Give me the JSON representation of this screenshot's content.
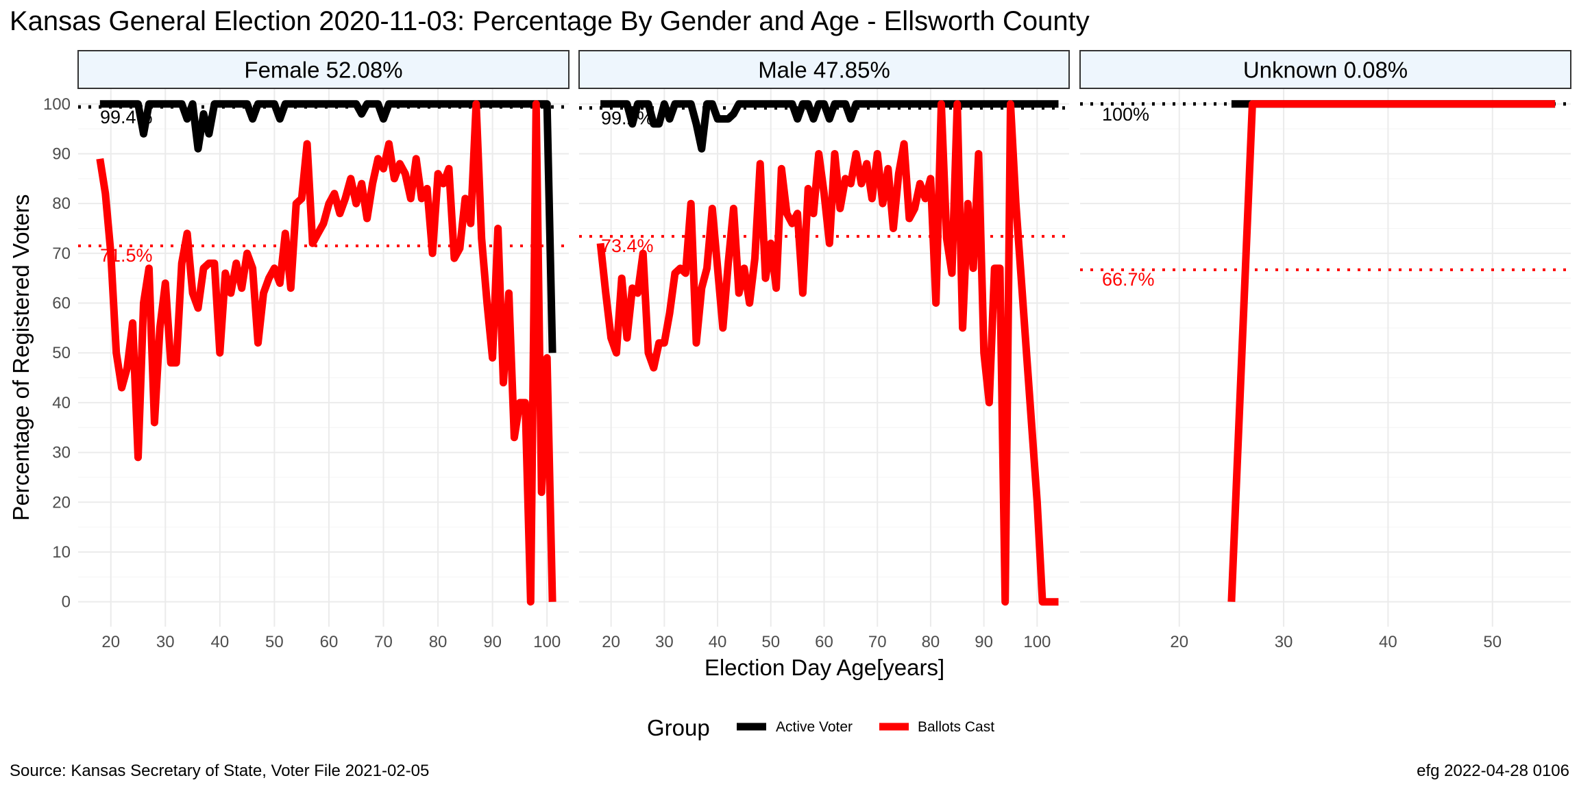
{
  "title": "Kansas General Election 2020-11-03:  Percentage By Gender and Age - Ellsworth County",
  "ylabel": "Percentage of Registered Voters",
  "xlabel": "Election Day Age[years]",
  "source": "Source:  Kansas Secretary of State, Voter File  2021-02-05",
  "credit": "efg 2022-04-28 0106",
  "legend": {
    "title": "Group",
    "items": [
      {
        "label": "Active Voter",
        "color": "#000000"
      },
      {
        "label": "Ballots Cast",
        "color": "#ff0000"
      }
    ]
  },
  "colors": {
    "active": "#000000",
    "ballots": "#ff0000",
    "strip_fill": "#eef6fd",
    "grid": "#ebebeb"
  },
  "chart_data": {
    "type": "line",
    "facet_by": "gender",
    "ylim": [
      -5,
      103
    ],
    "yticks": [
      0,
      10,
      20,
      30,
      40,
      50,
      60,
      70,
      80,
      90,
      100
    ],
    "grid": true,
    "legend_position": "bottom",
    "panels": [
      {
        "strip": "Female 52.08%",
        "xlim": [
          14,
          104
        ],
        "xticks": [
          20,
          30,
          40,
          50,
          60,
          70,
          80,
          90,
          100
        ],
        "active_mean": 99.4,
        "active_mean_label": "99.4%",
        "ballots_mean": 71.5,
        "ballots_mean_label": "71.5%",
        "series": [
          {
            "name": "Active Voter",
            "x": [
              18,
              19,
              20,
              21,
              22,
              23,
              24,
              25,
              26,
              27,
              28,
              29,
              30,
              31,
              32,
              33,
              34,
              35,
              36,
              37,
              38,
              39,
              40,
              41,
              42,
              43,
              44,
              45,
              46,
              47,
              48,
              49,
              50,
              51,
              52,
              53,
              54,
              55,
              56,
              57,
              58,
              59,
              60,
              61,
              62,
              63,
              64,
              65,
              66,
              67,
              68,
              69,
              70,
              71,
              72,
              73,
              74,
              75,
              76,
              77,
              78,
              79,
              80,
              81,
              82,
              83,
              84,
              85,
              86,
              87,
              88,
              89,
              90,
              91,
              92,
              93,
              94,
              95,
              96,
              97,
              98,
              99,
              100,
              101
            ],
            "y": [
              100,
              100,
              100,
              100,
              100,
              100,
              100,
              100,
              94,
              100,
              100,
              100,
              100,
              100,
              100,
              100,
              97,
              100,
              91,
              98,
              94,
              100,
              100,
              100,
              100,
              100,
              100,
              100,
              97,
              100,
              100,
              100,
              100,
              97,
              100,
              100,
              100,
              100,
              100,
              100,
              100,
              100,
              100,
              100,
              100,
              100,
              100,
              100,
              98,
              100,
              100,
              100,
              97,
              100,
              100,
              100,
              100,
              100,
              100,
              100,
              100,
              100,
              100,
              100,
              100,
              100,
              100,
              100,
              100,
              100,
              100,
              100,
              100,
              100,
              100,
              100,
              100,
              100,
              100,
              100,
              100,
              100,
              100,
              50
            ]
          },
          {
            "name": "Ballots Cast",
            "x": [
              18,
              19,
              20,
              21,
              22,
              23,
              24,
              25,
              26,
              27,
              28,
              29,
              30,
              31,
              32,
              33,
              34,
              35,
              36,
              37,
              38,
              39,
              40,
              41,
              42,
              43,
              44,
              45,
              46,
              47,
              48,
              49,
              50,
              51,
              52,
              53,
              54,
              55,
              56,
              57,
              58,
              59,
              60,
              61,
              62,
              63,
              64,
              65,
              66,
              67,
              68,
              69,
              70,
              71,
              72,
              73,
              74,
              75,
              76,
              77,
              78,
              79,
              80,
              81,
              82,
              83,
              84,
              85,
              86,
              87,
              88,
              89,
              90,
              91,
              92,
              93,
              94,
              95,
              96,
              97,
              98,
              99,
              100,
              101
            ],
            "y": [
              89,
              82,
              70,
              50,
              43,
              47,
              56,
              29,
              60,
              67,
              36,
              55,
              64,
              48,
              48,
              68,
              74,
              62,
              59,
              67,
              68,
              68,
              50,
              66,
              62,
              68,
              63,
              70,
              67,
              52,
              62,
              65,
              67,
              64,
              74,
              63,
              80,
              81,
              92,
              72,
              74,
              76,
              80,
              82,
              78,
              81,
              85,
              80,
              84,
              77,
              84,
              89,
              87,
              92,
              85,
              88,
              86,
              81,
              89,
              81,
              83,
              70,
              86,
              84,
              87,
              69,
              71,
              81,
              76,
              100,
              73,
              60,
              49,
              75,
              44,
              62,
              33,
              40,
              40,
              0,
              100,
              22,
              49,
              0
            ]
          }
        ]
      },
      {
        "strip": "Male 47.85%",
        "xlim": [
          14,
          106
        ],
        "xticks": [
          20,
          30,
          40,
          50,
          60,
          70,
          80,
          90,
          100
        ],
        "active_mean": 99.2,
        "active_mean_label": "99.2%",
        "ballots_mean": 73.4,
        "ballots_mean_label": "73.4%",
        "series": [
          {
            "name": "Active Voter",
            "x": [
              18,
              19,
              20,
              21,
              22,
              23,
              24,
              25,
              26,
              27,
              28,
              29,
              30,
              31,
              32,
              33,
              34,
              35,
              36,
              37,
              38,
              39,
              40,
              41,
              42,
              43,
              44,
              45,
              46,
              47,
              48,
              49,
              50,
              51,
              52,
              53,
              54,
              55,
              56,
              57,
              58,
              59,
              60,
              61,
              62,
              63,
              64,
              65,
              66,
              67,
              68,
              69,
              70,
              71,
              72,
              73,
              74,
              75,
              76,
              77,
              78,
              79,
              80,
              81,
              82,
              83,
              84,
              85,
              86,
              87,
              88,
              89,
              90,
              91,
              92,
              93,
              94,
              95,
              96,
              97,
              98,
              99,
              100,
              101,
              102,
              103,
              104
            ],
            "y": [
              100,
              100,
              100,
              100,
              100,
              100,
              96,
              100,
              100,
              100,
              96,
              96,
              100,
              97,
              100,
              100,
              100,
              100,
              96,
              91,
              100,
              100,
              97,
              97,
              97,
              98,
              100,
              100,
              100,
              100,
              100,
              100,
              100,
              100,
              100,
              100,
              100,
              97,
              100,
              100,
              97,
              100,
              100,
              97,
              100,
              100,
              100,
              97,
              100,
              100,
              100,
              100,
              100,
              100,
              100,
              100,
              100,
              100,
              100,
              100,
              100,
              100,
              100,
              100,
              100,
              100,
              100,
              100,
              100,
              100,
              100,
              100,
              100,
              100,
              100,
              100,
              100,
              100,
              100,
              100,
              100,
              100,
              100,
              100,
              100,
              100,
              100
            ]
          },
          {
            "name": "Ballots Cast",
            "x": [
              18,
              19,
              20,
              21,
              22,
              23,
              24,
              25,
              26,
              27,
              28,
              29,
              30,
              31,
              32,
              33,
              34,
              35,
              36,
              37,
              38,
              39,
              40,
              41,
              42,
              43,
              44,
              45,
              46,
              47,
              48,
              49,
              50,
              51,
              52,
              53,
              54,
              55,
              56,
              57,
              58,
              59,
              60,
              61,
              62,
              63,
              64,
              65,
              66,
              67,
              68,
              69,
              70,
              71,
              72,
              73,
              74,
              75,
              76,
              77,
              78,
              79,
              80,
              81,
              82,
              83,
              84,
              85,
              86,
              87,
              88,
              89,
              90,
              91,
              92,
              93,
              94,
              95,
              96,
              97,
              98,
              99,
              100,
              101,
              102,
              103,
              104
            ],
            "y": [
              72,
              62,
              53,
              50,
              65,
              53,
              63,
              62,
              70,
              50,
              47,
              52,
              52,
              58,
              66,
              67,
              66,
              80,
              52,
              63,
              67,
              79,
              67,
              55,
              68,
              79,
              62,
              67,
              60,
              69,
              88,
              65,
              72,
              63,
              87,
              78,
              76,
              78,
              62,
              83,
              78,
              90,
              82,
              72,
              90,
              79,
              85,
              84,
              90,
              84,
              88,
              81,
              90,
              80,
              87,
              75,
              86,
              92,
              77,
              79,
              84,
              81,
              85,
              60,
              100,
              73,
              66,
              100,
              55,
              80,
              67,
              90,
              50,
              40,
              67,
              67,
              0,
              100,
              80,
              65,
              50,
              35,
              20,
              0,
              0,
              0,
              0
            ]
          }
        ]
      },
      {
        "strip": "Unknown 0.08%",
        "xlim": [
          10.5,
          57.5
        ],
        "xticks": [
          20,
          30,
          40,
          50
        ],
        "active_mean": 100,
        "active_mean_label": "100%",
        "ballots_mean": 66.7,
        "ballots_mean_label": "66.7%",
        "series": [
          {
            "name": "Active Voter",
            "x": [
              25,
              26,
              27,
              28,
              29,
              30,
              31,
              32,
              33,
              34,
              35,
              36,
              37,
              38,
              39,
              40,
              41,
              42,
              43,
              44,
              45,
              46,
              47,
              48,
              49,
              50,
              51,
              52,
              53,
              54,
              55,
              56
            ],
            "y": [
              100,
              100,
              100,
              100,
              100,
              100,
              100,
              100,
              100,
              100,
              100,
              100,
              100,
              100,
              100,
              100,
              100,
              100,
              100,
              100,
              100,
              100,
              100,
              100,
              100,
              100,
              100,
              100,
              100,
              100,
              100,
              100
            ]
          },
          {
            "name": "Ballots Cast",
            "x": [
              25,
              26,
              27,
              28,
              29,
              30,
              31,
              32,
              33,
              34,
              35,
              36,
              37,
              38,
              39,
              40,
              41,
              42,
              43,
              44,
              45,
              46,
              47,
              48,
              49,
              50,
              51,
              52,
              53,
              54,
              55,
              56
            ],
            "y": [
              0,
              50,
              100,
              100,
              100,
              100,
              100,
              100,
              100,
              100,
              100,
              100,
              100,
              100,
              100,
              100,
              100,
              100,
              100,
              100,
              100,
              100,
              100,
              100,
              100,
              100,
              100,
              100,
              100,
              100,
              100,
              100
            ]
          }
        ]
      }
    ]
  }
}
